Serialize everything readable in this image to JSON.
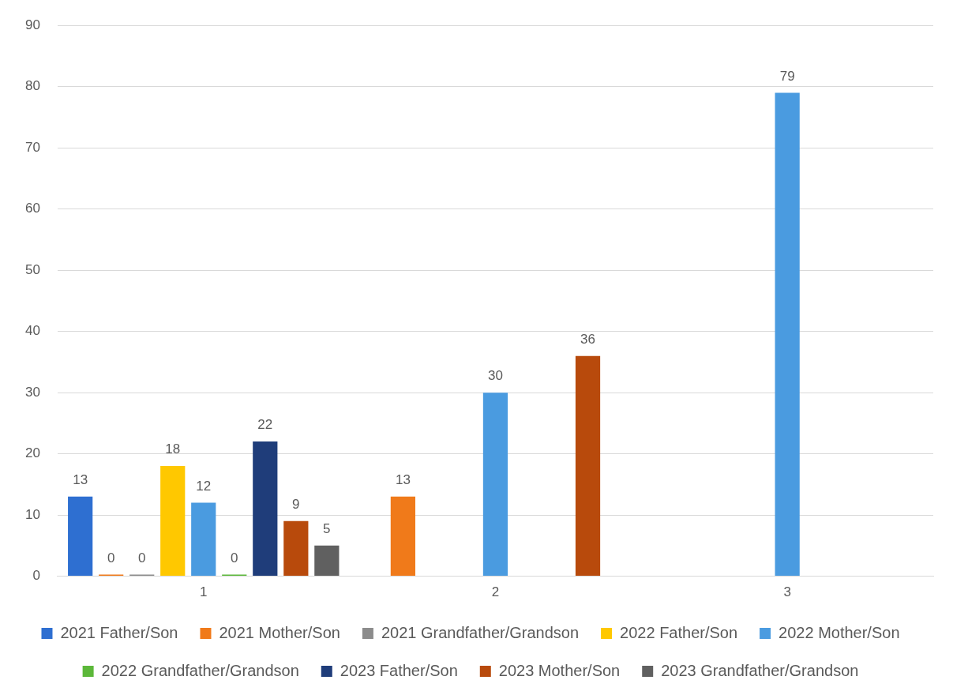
{
  "chart_data": {
    "type": "bar",
    "categories": [
      "1",
      "2",
      "3"
    ],
    "series": [
      {
        "name": "2021 Father/Son",
        "color": "#2e6fd1",
        "values": [
          13,
          null,
          null
        ]
      },
      {
        "name": "2021 Mother/Son",
        "color": "#f07a1a",
        "values": [
          0,
          13,
          null
        ]
      },
      {
        "name": "2021 Grandfather/Grandson",
        "color": "#8c8c8c",
        "values": [
          0,
          null,
          null
        ]
      },
      {
        "name": "2022 Father/Son",
        "color": "#ffc800",
        "values": [
          18,
          null,
          null
        ]
      },
      {
        "name": "2022 Mother/Son",
        "color": "#4a9be0",
        "values": [
          12,
          30,
          79
        ]
      },
      {
        "name": "2022 Grandfather/Grandson",
        "color": "#5cb83a",
        "values": [
          0,
          null,
          null
        ]
      },
      {
        "name": "2023 Father/Son",
        "color": "#1f3d7a",
        "values": [
          22,
          null,
          null
        ]
      },
      {
        "name": "2023 Mother/Son",
        "color": "#b84a0c",
        "values": [
          9,
          36,
          null
        ]
      },
      {
        "name": "2023 Grandfather/Grandson",
        "color": "#606060",
        "values": [
          5,
          null,
          null
        ]
      }
    ],
    "ylim": [
      0,
      90
    ],
    "yticks": [
      0,
      10,
      20,
      30,
      40,
      50,
      60,
      70,
      80,
      90
    ],
    "grid": "y",
    "legend": "bottom",
    "data_labels": true
  }
}
